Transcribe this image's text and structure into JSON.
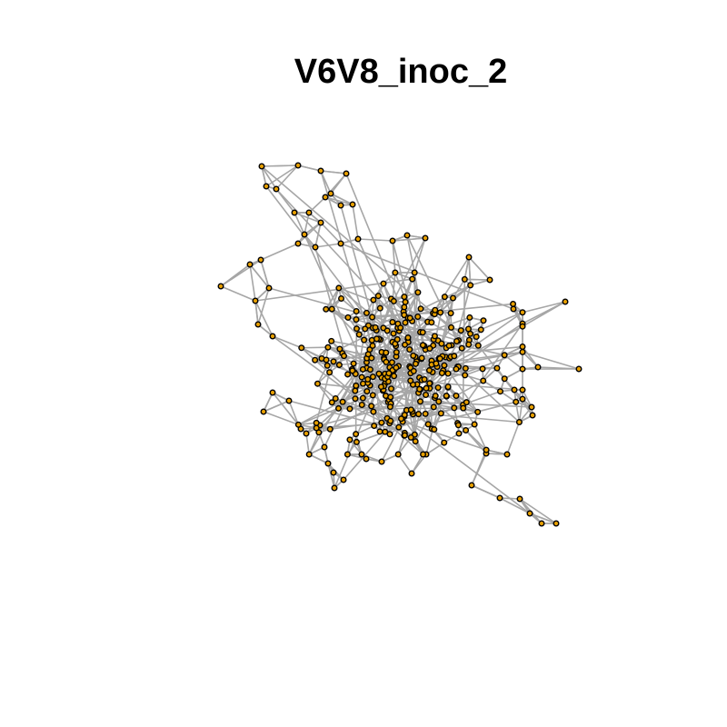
{
  "title": "V6V8_inoc_2",
  "colors": {
    "background": "#ffffff",
    "edge": "#a6a6a6",
    "node_fill": "#e69f00",
    "node_stroke": "#000000"
  },
  "graph": {
    "layout": "force-directed",
    "node_shape": "circle"
  }
}
